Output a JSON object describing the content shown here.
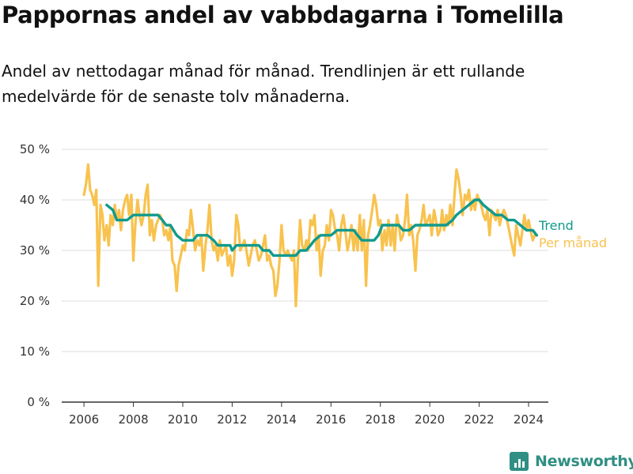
{
  "colors": {
    "trend": "#109a8c",
    "monthly": "#f8c24e",
    "grid": "#dddddd",
    "axis": "#333333",
    "brand": "#2f8f83"
  },
  "brand": {
    "name": "Newsworthy",
    "icon": "newsworthy-bar-chart-icon"
  },
  "chart_data": {
    "type": "line",
    "title": "Pappornas andel av vabbdagarna i Tomelilla",
    "subtitle": "Andel av nettodagar månad för månad. Trendlinjen är ett rullande medelvärde för de senaste tolv månaderna.",
    "xlabel": "",
    "ylabel": "",
    "x_ticks": [
      "2006",
      "2008",
      "2010",
      "2012",
      "2014",
      "2016",
      "2018",
      "2020",
      "2022",
      "2024"
    ],
    "y_ticks": [
      "0 %",
      "10 %",
      "20 %",
      "30 %",
      "40 %",
      "50 %"
    ],
    "ylim": [
      0,
      50
    ],
    "xlim": [
      2005.1,
      2024.8
    ],
    "grid": true,
    "legend_placement": "right, at line ends",
    "series": [
      {
        "name": "Per månad",
        "values": [
          [
            2006.0,
            41
          ],
          [
            2006.08,
            43
          ],
          [
            2006.17,
            47
          ],
          [
            2006.25,
            42
          ],
          [
            2006.33,
            41
          ],
          [
            2006.42,
            39
          ],
          [
            2006.5,
            42
          ],
          [
            2006.58,
            23
          ],
          [
            2006.67,
            39
          ],
          [
            2006.75,
            37
          ],
          [
            2006.83,
            32
          ],
          [
            2006.92,
            35
          ],
          [
            2007.0,
            31
          ],
          [
            2007.08,
            37
          ],
          [
            2007.17,
            35
          ],
          [
            2007.25,
            39
          ],
          [
            2007.33,
            36
          ],
          [
            2007.42,
            38
          ],
          [
            2007.5,
            34
          ],
          [
            2007.58,
            38
          ],
          [
            2007.67,
            40
          ],
          [
            2007.75,
            41
          ],
          [
            2007.83,
            37
          ],
          [
            2007.92,
            41
          ],
          [
            2008.0,
            28
          ],
          [
            2008.08,
            35
          ],
          [
            2008.17,
            40
          ],
          [
            2008.25,
            37
          ],
          [
            2008.33,
            35
          ],
          [
            2008.42,
            37
          ],
          [
            2008.5,
            41
          ],
          [
            2008.58,
            43
          ],
          [
            2008.67,
            33
          ],
          [
            2008.75,
            36
          ],
          [
            2008.83,
            32
          ],
          [
            2008.92,
            35
          ],
          [
            2009.0,
            36
          ],
          [
            2009.08,
            37
          ],
          [
            2009.17,
            36
          ],
          [
            2009.25,
            33
          ],
          [
            2009.33,
            34
          ],
          [
            2009.42,
            32
          ],
          [
            2009.5,
            35
          ],
          [
            2009.58,
            28
          ],
          [
            2009.67,
            27
          ],
          [
            2009.75,
            22
          ],
          [
            2009.83,
            27
          ],
          [
            2009.92,
            29
          ],
          [
            2010.0,
            31
          ],
          [
            2010.08,
            30
          ],
          [
            2010.17,
            34
          ],
          [
            2010.25,
            33
          ],
          [
            2010.33,
            38
          ],
          [
            2010.42,
            34
          ],
          [
            2010.5,
            30
          ],
          [
            2010.58,
            32
          ],
          [
            2010.67,
            31
          ],
          [
            2010.75,
            33
          ],
          [
            2010.83,
            26
          ],
          [
            2010.92,
            31
          ],
          [
            2011.0,
            34
          ],
          [
            2011.08,
            39
          ],
          [
            2011.17,
            32
          ],
          [
            2011.25,
            30
          ],
          [
            2011.33,
            31
          ],
          [
            2011.42,
            28
          ],
          [
            2011.5,
            32
          ],
          [
            2011.58,
            29
          ],
          [
            2011.67,
            30
          ],
          [
            2011.75,
            31
          ],
          [
            2011.83,
            27
          ],
          [
            2011.92,
            29
          ],
          [
            2012.0,
            25
          ],
          [
            2012.08,
            28
          ],
          [
            2012.17,
            37
          ],
          [
            2012.25,
            35
          ],
          [
            2012.33,
            30
          ],
          [
            2012.42,
            31
          ],
          [
            2012.5,
            32
          ],
          [
            2012.58,
            30
          ],
          [
            2012.67,
            27
          ],
          [
            2012.75,
            29
          ],
          [
            2012.83,
            31
          ],
          [
            2012.92,
            32
          ],
          [
            2013.0,
            30
          ],
          [
            2013.08,
            28
          ],
          [
            2013.17,
            29
          ],
          [
            2013.25,
            31
          ],
          [
            2013.33,
            33
          ],
          [
            2013.42,
            28
          ],
          [
            2013.5,
            29
          ],
          [
            2013.58,
            27
          ],
          [
            2013.67,
            26
          ],
          [
            2013.75,
            21
          ],
          [
            2013.83,
            23
          ],
          [
            2013.92,
            28
          ],
          [
            2014.0,
            35
          ],
          [
            2014.08,
            30
          ],
          [
            2014.17,
            29
          ],
          [
            2014.25,
            30
          ],
          [
            2014.33,
            29
          ],
          [
            2014.42,
            28
          ],
          [
            2014.5,
            30
          ],
          [
            2014.58,
            19
          ],
          [
            2014.67,
            29
          ],
          [
            2014.75,
            36
          ],
          [
            2014.83,
            31
          ],
          [
            2014.92,
            30
          ],
          [
            2015.0,
            32
          ],
          [
            2015.08,
            30
          ],
          [
            2015.17,
            36
          ],
          [
            2015.25,
            35
          ],
          [
            2015.33,
            37
          ],
          [
            2015.42,
            30
          ],
          [
            2015.5,
            33
          ],
          [
            2015.58,
            25
          ],
          [
            2015.67,
            30
          ],
          [
            2015.75,
            31
          ],
          [
            2015.83,
            35
          ],
          [
            2015.92,
            32
          ],
          [
            2016.0,
            38
          ],
          [
            2016.08,
            37
          ],
          [
            2016.17,
            34
          ],
          [
            2016.25,
            33
          ],
          [
            2016.33,
            30
          ],
          [
            2016.42,
            35
          ],
          [
            2016.5,
            37
          ],
          [
            2016.58,
            34
          ],
          [
            2016.67,
            30
          ],
          [
            2016.75,
            32
          ],
          [
            2016.83,
            35
          ],
          [
            2016.92,
            30
          ],
          [
            2017.0,
            34
          ],
          [
            2017.08,
            30
          ],
          [
            2017.17,
            37
          ],
          [
            2017.25,
            30
          ],
          [
            2017.33,
            36
          ],
          [
            2017.42,
            23
          ],
          [
            2017.5,
            33
          ],
          [
            2017.58,
            35
          ],
          [
            2017.67,
            38
          ],
          [
            2017.75,
            41
          ],
          [
            2017.83,
            39
          ],
          [
            2017.92,
            35
          ],
          [
            2018.0,
            36
          ],
          [
            2018.08,
            30
          ],
          [
            2018.17,
            34
          ],
          [
            2018.25,
            31
          ],
          [
            2018.33,
            36
          ],
          [
            2018.42,
            31
          ],
          [
            2018.5,
            35
          ],
          [
            2018.58,
            30
          ],
          [
            2018.67,
            37
          ],
          [
            2018.75,
            35
          ],
          [
            2018.83,
            32
          ],
          [
            2018.92,
            33
          ],
          [
            2019.0,
            36
          ],
          [
            2019.08,
            41
          ],
          [
            2019.17,
            33
          ],
          [
            2019.25,
            35
          ],
          [
            2019.33,
            32
          ],
          [
            2019.42,
            26
          ],
          [
            2019.5,
            33
          ],
          [
            2019.58,
            34
          ],
          [
            2019.67,
            36
          ],
          [
            2019.75,
            39
          ],
          [
            2019.83,
            35
          ],
          [
            2019.92,
            36
          ],
          [
            2020.0,
            37
          ],
          [
            2020.08,
            33
          ],
          [
            2020.17,
            38
          ],
          [
            2020.25,
            36
          ],
          [
            2020.33,
            33
          ],
          [
            2020.42,
            34
          ],
          [
            2020.5,
            38
          ],
          [
            2020.58,
            34
          ],
          [
            2020.67,
            37
          ],
          [
            2020.75,
            35
          ],
          [
            2020.83,
            39
          ],
          [
            2020.92,
            35
          ],
          [
            2021.0,
            41
          ],
          [
            2021.08,
            46
          ],
          [
            2021.17,
            44
          ],
          [
            2021.25,
            41
          ],
          [
            2021.33,
            37
          ],
          [
            2021.42,
            41
          ],
          [
            2021.5,
            40
          ],
          [
            2021.58,
            42
          ],
          [
            2021.67,
            38
          ],
          [
            2021.75,
            40
          ],
          [
            2021.83,
            38
          ],
          [
            2021.92,
            41
          ],
          [
            2022.0,
            40
          ],
          [
            2022.08,
            39
          ],
          [
            2022.17,
            37
          ],
          [
            2022.25,
            36
          ],
          [
            2022.33,
            38
          ],
          [
            2022.42,
            33
          ],
          [
            2022.5,
            38
          ],
          [
            2022.58,
            37
          ],
          [
            2022.67,
            36
          ],
          [
            2022.75,
            38
          ],
          [
            2022.83,
            35
          ],
          [
            2022.92,
            37
          ],
          [
            2023.0,
            38
          ],
          [
            2023.08,
            37
          ],
          [
            2023.17,
            35
          ],
          [
            2023.25,
            33
          ],
          [
            2023.33,
            31
          ],
          [
            2023.42,
            29
          ],
          [
            2023.5,
            35
          ],
          [
            2023.58,
            33
          ],
          [
            2023.67,
            31
          ],
          [
            2023.75,
            34
          ],
          [
            2023.83,
            37
          ],
          [
            2023.92,
            34
          ],
          [
            2024.0,
            36
          ],
          [
            2024.08,
            34
          ],
          [
            2024.17,
            32
          ],
          [
            2024.25,
            33
          ],
          [
            2024.33,
            33
          ]
        ]
      },
      {
        "name": "Trend",
        "values": [
          [
            2006.92,
            39
          ],
          [
            2007.17,
            38
          ],
          [
            2007.33,
            36
          ],
          [
            2007.5,
            36
          ],
          [
            2007.75,
            36
          ],
          [
            2008.0,
            37
          ],
          [
            2008.33,
            37
          ],
          [
            2008.5,
            37
          ],
          [
            2008.75,
            37
          ],
          [
            2009.0,
            37
          ],
          [
            2009.17,
            36
          ],
          [
            2009.33,
            35
          ],
          [
            2009.5,
            35
          ],
          [
            2009.75,
            33
          ],
          [
            2010.0,
            32
          ],
          [
            2010.25,
            32
          ],
          [
            2010.42,
            32
          ],
          [
            2010.58,
            33
          ],
          [
            2010.83,
            33
          ],
          [
            2011.0,
            33
          ],
          [
            2011.25,
            32
          ],
          [
            2011.42,
            31
          ],
          [
            2011.67,
            31
          ],
          [
            2011.92,
            31
          ],
          [
            2012.0,
            30
          ],
          [
            2012.17,
            31
          ],
          [
            2012.42,
            31
          ],
          [
            2012.67,
            31
          ],
          [
            2012.92,
            31
          ],
          [
            2013.08,
            31
          ],
          [
            2013.25,
            30
          ],
          [
            2013.5,
            30
          ],
          [
            2013.67,
            29
          ],
          [
            2013.83,
            29
          ],
          [
            2014.0,
            29
          ],
          [
            2014.25,
            29
          ],
          [
            2014.42,
            29
          ],
          [
            2014.58,
            29
          ],
          [
            2014.75,
            30
          ],
          [
            2015.0,
            30
          ],
          [
            2015.17,
            31
          ],
          [
            2015.33,
            32
          ],
          [
            2015.58,
            33
          ],
          [
            2015.83,
            33
          ],
          [
            2016.0,
            33
          ],
          [
            2016.25,
            34
          ],
          [
            2016.5,
            34
          ],
          [
            2016.75,
            34
          ],
          [
            2016.92,
            34
          ],
          [
            2017.08,
            33
          ],
          [
            2017.25,
            32
          ],
          [
            2017.5,
            32
          ],
          [
            2017.75,
            32
          ],
          [
            2017.92,
            33
          ],
          [
            2018.08,
            35
          ],
          [
            2018.25,
            35
          ],
          [
            2018.5,
            35
          ],
          [
            2018.75,
            35
          ],
          [
            2018.92,
            34
          ],
          [
            2019.17,
            34
          ],
          [
            2019.42,
            35
          ],
          [
            2019.67,
            35
          ],
          [
            2019.92,
            35
          ],
          [
            2020.17,
            35
          ],
          [
            2020.42,
            35
          ],
          [
            2020.67,
            35
          ],
          [
            2020.92,
            36
          ],
          [
            2021.08,
            37
          ],
          [
            2021.33,
            38
          ],
          [
            2021.58,
            39
          ],
          [
            2021.83,
            40
          ],
          [
            2022.0,
            40
          ],
          [
            2022.17,
            39
          ],
          [
            2022.42,
            38
          ],
          [
            2022.67,
            37
          ],
          [
            2022.92,
            37
          ],
          [
            2023.17,
            36
          ],
          [
            2023.42,
            36
          ],
          [
            2023.67,
            35
          ],
          [
            2023.92,
            34
          ],
          [
            2024.17,
            34
          ],
          [
            2024.33,
            33
          ]
        ]
      }
    ]
  }
}
